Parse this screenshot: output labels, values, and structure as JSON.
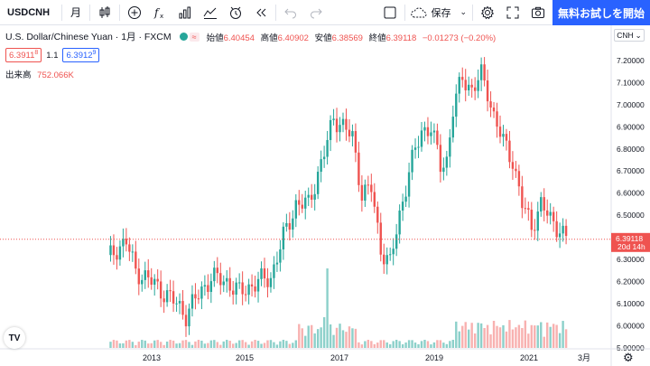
{
  "toolbar": {
    "symbol": "USDCNH",
    "interval": "月",
    "save_label": "保存",
    "trial_button": "無料お試しを開始"
  },
  "legend": {
    "title": "U.S. Dollar/Chinese Yuan · 1月 · FXCM",
    "ohlc": [
      {
        "label": "始値",
        "value": "6.40454"
      },
      {
        "label": "高値",
        "value": "6.40902"
      },
      {
        "label": "安値",
        "value": "6.38569"
      },
      {
        "label": "終値",
        "value": "6.39118"
      }
    ],
    "change": "−0.01273 (−0.20%)",
    "sell_price": "6.3911",
    "sell_sup": "8",
    "spread": "1.1",
    "buy_price": "6.3912",
    "buy_sup": "9",
    "volume_label": "出来高",
    "volume_value": "752.066K"
  },
  "price_axis": {
    "currency": "CNH",
    "ticks": [
      "7.20000",
      "7.10000",
      "7.00000",
      "6.90000",
      "6.80000",
      "6.70000",
      "6.60000",
      "6.50000",
      "6.40000",
      "6.30000",
      "6.20000",
      "6.10000",
      "6.00000",
      "5.90000"
    ],
    "last_price": "6.39118",
    "countdown": "20d 14h"
  },
  "time_axis": {
    "ticks": [
      "2013",
      "2015",
      "2017",
      "2019",
      "2021",
      "3月"
    ]
  },
  "colors": {
    "up": "#26a69a",
    "down": "#ef5350",
    "accent": "#2962ff"
  },
  "chart_data": {
    "type": "candlestick",
    "title": "U.S. Dollar/Chinese Yuan",
    "interval": "1M",
    "exchange": "FXCM",
    "ylim": [
      5.9,
      7.22
    ],
    "x": [
      "2012",
      "2013",
      "2014",
      "2015",
      "2016",
      "2017",
      "2018",
      "2019",
      "2020",
      "2021"
    ],
    "yearly_close": [
      6.23,
      6.05,
      6.2,
      6.48,
      6.95,
      6.52,
      6.87,
      6.99,
      6.53,
      6.39
    ],
    "last": {
      "open": 6.40454,
      "high": 6.40902,
      "low": 6.38569,
      "close": 6.39118,
      "change": -0.01273,
      "change_pct": -0.2
    },
    "volume_last": "752.066K"
  },
  "icons": {
    "bar_style": "candles-icon",
    "indicators": "add-indicator-icon",
    "fx": "fx-icon",
    "financials": "financials-icon",
    "compare": "compare-icon",
    "alert": "alert-icon",
    "replay": "replay-icon",
    "undo": "undo-icon",
    "redo": "redo-icon",
    "layout": "layout-icon",
    "cloud": "cloud-icon",
    "settings": "gear-icon",
    "fullscreen": "fullscreen-icon",
    "snapshot": "camera-icon"
  }
}
